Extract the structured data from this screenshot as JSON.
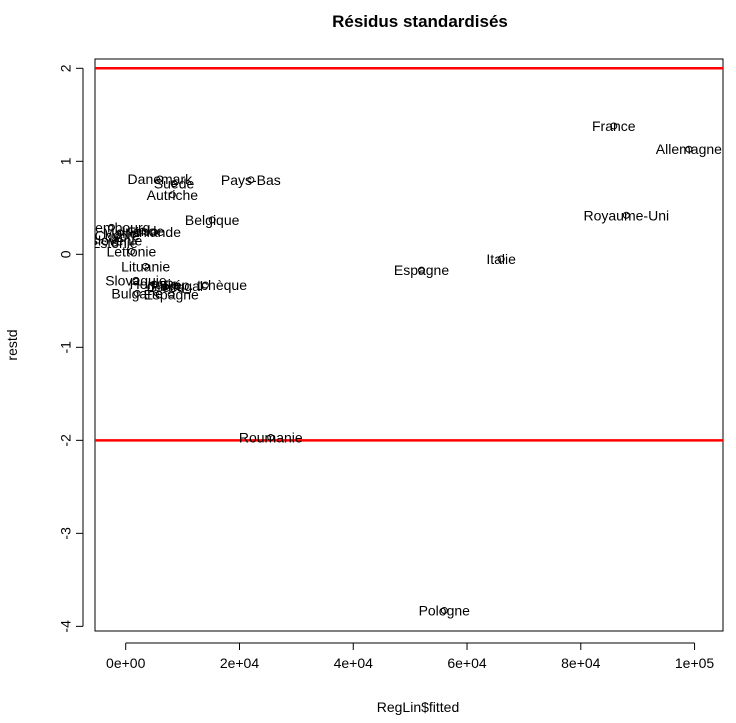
{
  "chart_data": {
    "type": "scatter",
    "title": "Résidus standardisés",
    "xlabel": "RegLin$fitted",
    "ylabel": "restd",
    "xlim": [
      -5400,
      105000
    ],
    "ylim": [
      -4.05,
      2.1
    ],
    "x_ticks": [
      0,
      20000,
      40000,
      60000,
      80000,
      100000
    ],
    "x_tick_labels": [
      "0e+00",
      "2e+04",
      "4e+04",
      "6e+04",
      "8e+04",
      "1e+05"
    ],
    "y_ticks": [
      2,
      1,
      0,
      -1,
      -2,
      -3,
      -4
    ],
    "y_tick_labels": [
      "2",
      "1",
      "0",
      "-1",
      "-2",
      "-3",
      "-4"
    ],
    "reference_lines": [
      {
        "y": 2,
        "color": "#ff0000"
      },
      {
        "y": -2,
        "color": "#ff0000"
      }
    ],
    "points": [
      {
        "label": "France",
        "x": 85800,
        "y": 1.38
      },
      {
        "label": "Allemagne",
        "x": 99000,
        "y": 1.13
      },
      {
        "label": "Royaume-Uni",
        "x": 88000,
        "y": 0.42
      },
      {
        "label": "Italie",
        "x": 66000,
        "y": -0.05
      },
      {
        "label": "Espagne",
        "x": 52000,
        "y": -0.17
      },
      {
        "label": "Pologne",
        "x": 56000,
        "y": -3.83
      },
      {
        "label": "Roumanie",
        "x": 25500,
        "y": -1.97
      },
      {
        "label": "Pays-Bas",
        "x": 22000,
        "y": 0.8
      },
      {
        "label": "Danemark",
        "x": 6000,
        "y": 0.81
      },
      {
        "label": "Suède",
        "x": 8500,
        "y": 0.76
      },
      {
        "label": "Autriche",
        "x": 8200,
        "y": 0.64
      },
      {
        "label": "Belgique",
        "x": 15200,
        "y": 0.37
      },
      {
        "label": "Finlande",
        "x": 5000,
        "y": 0.24
      },
      {
        "label": "Irlande",
        "x": 3000,
        "y": 0.25
      },
      {
        "label": "Luxembourg",
        "x": -2500,
        "y": 0.29
      },
      {
        "label": "Malte",
        "x": -1000,
        "y": 0.23
      },
      {
        "label": "Chypre",
        "x": -1500,
        "y": 0.2
      },
      {
        "label": "Slovénie",
        "x": -1800,
        "y": 0.15
      },
      {
        "label": "Estonie",
        "x": -2000,
        "y": 0.12
      },
      {
        "label": "Lettonie",
        "x": 1000,
        "y": 0.03
      },
      {
        "label": "Lituanie",
        "x": 3500,
        "y": -0.13
      },
      {
        "label": "Slovaquie",
        "x": 1800,
        "y": -0.28
      },
      {
        "label": "Hongrie",
        "x": 5000,
        "y": -0.32
      },
      {
        "label": "Rép. tchèque",
        "x": 14000,
        "y": -0.33
      },
      {
        "label": "Portugal",
        "x": 9000,
        "y": -0.34
      },
      {
        "label": "Grèce",
        "x": 7000,
        "y": -0.35
      },
      {
        "label": "Bulgarie",
        "x": 2000,
        "y": -0.42
      },
      {
        "label": "Espagne (petit)",
        "x": 8000,
        "y": -0.43
      }
    ]
  }
}
